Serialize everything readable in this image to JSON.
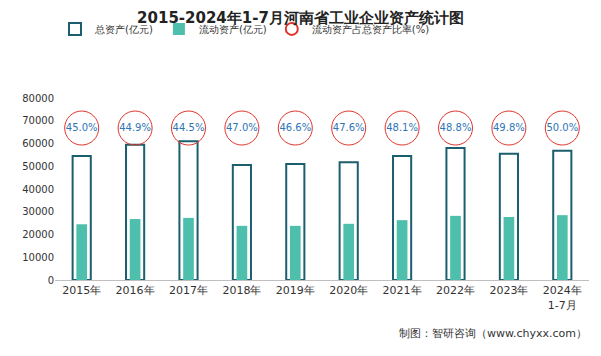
{
  "chart_data": {
    "type": "bar",
    "title": "2015-2024年1-7月河南省工业企业资产统计图",
    "categories": [
      "2015年",
      "2016年",
      "2017年",
      "2018年",
      "2019年",
      "2020年",
      "2021年",
      "2022年",
      "2023年",
      "2024年\n1-7月"
    ],
    "series": [
      {
        "name": "总资产(亿元)",
        "type": "bar",
        "color": "#1b5e6e",
        "values": [
          54500,
          59500,
          61000,
          50500,
          51000,
          51800,
          54500,
          58000,
          55500,
          56800
        ]
      },
      {
        "name": "流动资产(亿元)",
        "type": "bar",
        "color": "#4fbfad",
        "values": [
          24500,
          26800,
          27300,
          23800,
          23800,
          24700,
          26300,
          28200,
          27700,
          28500
        ]
      },
      {
        "name": "流动资产占总资产比率(%)",
        "type": "scatter",
        "marker": "circle-open",
        "color": "#e0342b",
        "data_labels": true,
        "values": [
          45.0,
          44.9,
          44.5,
          47.0,
          46.6,
          47.6,
          48.1,
          48.8,
          49.8,
          50.0
        ],
        "value_labels": [
          "45.0%",
          "44.9%",
          "44.5%",
          "47.0%",
          "46.6%",
          "47.6%",
          "48.1%",
          "48.8%",
          "49.8%",
          "50.0%"
        ]
      }
    ],
    "ylim": [
      0,
      80000
    ],
    "yticks": [
      0,
      10000,
      20000,
      30000,
      40000,
      50000,
      60000,
      70000,
      80000
    ],
    "grid": false,
    "legend": "top",
    "source": "制图：智研咨询（www.chyxx.com）"
  }
}
